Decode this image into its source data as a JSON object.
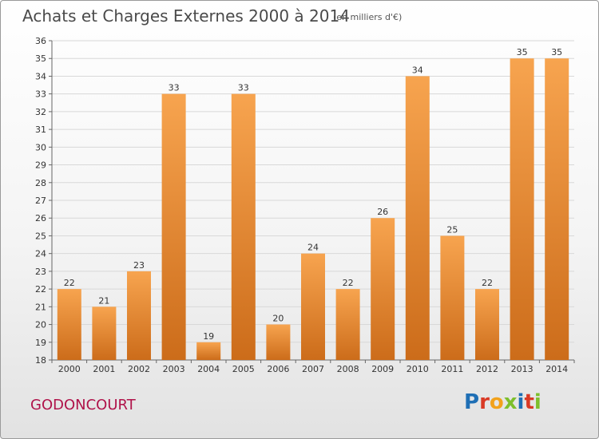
{
  "header": {
    "title": "Achats et Charges Externes 2000 à 2014",
    "unit": "(en milliers d'€)"
  },
  "footer": {
    "place": "GODONCOURT",
    "logo": "Proxiti",
    "logo_colors": [
      "#1f6fb5",
      "#d93a26",
      "#f2a21c",
      "#7dbf2c",
      "#1f6fb5",
      "#d93a26",
      "#7dbf2c"
    ]
  },
  "colors": {
    "bar_light": "#f7a44f",
    "bar_dark": "#cc6c1a",
    "grid": "#d8d8d8"
  },
  "chart_data": {
    "type": "bar",
    "title": "Achats et Charges Externes 2000 à 2014",
    "xlabel": "",
    "ylabel": "",
    "categories": [
      "2000",
      "2001",
      "2002",
      "2003",
      "2004",
      "2005",
      "2006",
      "2007",
      "2008",
      "2009",
      "2010",
      "2011",
      "2012",
      "2013",
      "2014"
    ],
    "values": [
      22,
      21,
      23,
      33,
      19,
      33,
      20,
      24,
      22,
      26,
      34,
      25,
      22,
      35,
      35
    ],
    "ylim": [
      18,
      36
    ],
    "yticks": [
      18,
      19,
      20,
      21,
      22,
      23,
      24,
      25,
      26,
      27,
      28,
      29,
      30,
      31,
      32,
      33,
      34,
      35,
      36
    ],
    "grid": true
  }
}
